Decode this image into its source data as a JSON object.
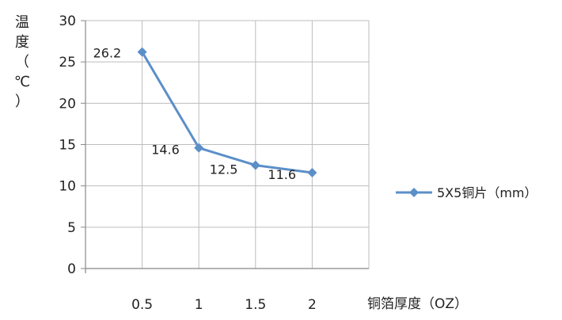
{
  "chart_data": {
    "type": "line",
    "title": "",
    "xlabel": "铜箔厚度（OZ）",
    "ylabel": "温度（℃）",
    "ylabel_chars": [
      "温",
      "度",
      "（",
      "℃",
      "）"
    ],
    "categories": [
      "0.5",
      "1",
      "1.5",
      "2"
    ],
    "ylim": [
      0,
      30
    ],
    "yticks": [
      "0",
      "5",
      "10",
      "15",
      "20",
      "25",
      "30"
    ],
    "grid": true,
    "legend_position": "right",
    "series": [
      {
        "name": "5X5铜片（mm）",
        "values": [
          26.2,
          14.6,
          12.5,
          11.6
        ],
        "labels": [
          "26.2",
          "14.6",
          "12.5",
          "11.6"
        ],
        "color": "#5b8fc8"
      }
    ]
  }
}
